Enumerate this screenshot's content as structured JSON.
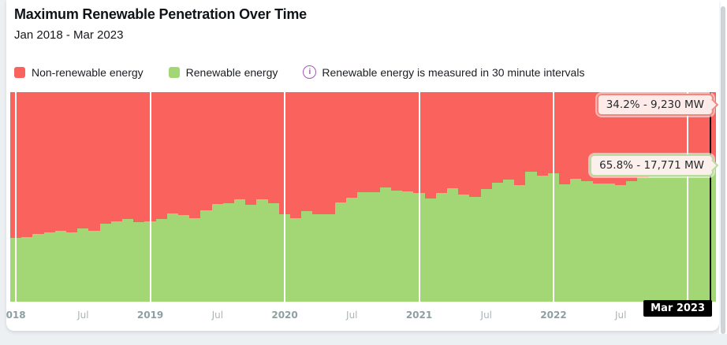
{
  "header": {
    "title": "Maximum Renewable Penetration Over Time",
    "subtitle": "Jan 2018 - Mar 2023"
  },
  "legend": {
    "items": [
      {
        "label": "Non-renewable energy",
        "color": "#fa625d"
      },
      {
        "label": "Renewable energy",
        "color": "#a3d675"
      }
    ],
    "note": {
      "icon": "info-icon",
      "icon_glyph": "i",
      "icon_color": "#a05ab0",
      "text": "Renewable energy is measured in 30 minute intervals"
    }
  },
  "tooltips": [
    {
      "series": "Non-renewable energy",
      "text": "34.2% - 9,230 MW",
      "border_color": "#f08a7e",
      "bg": "#fcebe8"
    },
    {
      "series": "Renewable energy",
      "text": "65.8% - 17,771 MW",
      "border_color": "#b8dd9e",
      "bg": "#fcf0ed"
    }
  ],
  "xaxis": {
    "ticks": [
      {
        "label": "018",
        "month": 0,
        "style": "year"
      },
      {
        "label": "Jul",
        "month": 6,
        "style": "minor"
      },
      {
        "label": "2019",
        "month": 12,
        "style": "year"
      },
      {
        "label": "Jul",
        "month": 18,
        "style": "minor"
      },
      {
        "label": "2020",
        "month": 24,
        "style": "year"
      },
      {
        "label": "Jul",
        "month": 30,
        "style": "minor"
      },
      {
        "label": "2021",
        "month": 36,
        "style": "year"
      },
      {
        "label": "Jul",
        "month": 42,
        "style": "minor"
      },
      {
        "label": "2022",
        "month": 48,
        "style": "year"
      },
      {
        "label": "Jul",
        "month": 54,
        "style": "minor"
      }
    ],
    "cursor": {
      "label": "Mar 2023",
      "month": 62
    }
  },
  "chart_data": {
    "type": "bar",
    "stacked": true,
    "normalized_to_100_percent": true,
    "x_start": "2018-01",
    "x_end": "2023-03",
    "months_count": 63,
    "gridline_months": [
      0,
      12,
      24,
      36,
      48,
      60
    ],
    "series": [
      {
        "name": "Non-renewable energy",
        "color": "#fa625d",
        "values_note": "complement: 100 minus renewable_pct"
      },
      {
        "name": "Renewable energy",
        "color": "#a3d675",
        "values_key": "renewable_pct"
      }
    ],
    "renewable_pct": [
      30.5,
      30.8,
      32.3,
      33.1,
      33.8,
      33.1,
      35.0,
      33.8,
      37.2,
      38.3,
      39.5,
      38.0,
      38.3,
      39.5,
      42.1,
      41.4,
      39.8,
      43.6,
      46.6,
      47.0,
      48.9,
      46.2,
      48.9,
      47.0,
      41.7,
      39.8,
      43.2,
      41.7,
      41.7,
      47.4,
      49.6,
      52.3,
      52.3,
      54.5,
      53.0,
      52.6,
      51.9,
      49.2,
      51.9,
      54.1,
      51.1,
      50.0,
      53.8,
      56.8,
      58.3,
      55.6,
      62.0,
      60.2,
      61.3,
      56.0,
      58.6,
      57.5,
      56.4,
      56.4,
      55.6,
      57.5,
      59.4,
      60.5,
      60.5,
      61.3,
      63.2,
      63.9,
      65.8
    ],
    "hover_readout": {
      "x": "Mar 2023",
      "non_renewable": "34.2% - 9,230 MW",
      "renewable": "65.8% - 17,771 MW"
    },
    "title": "Maximum Renewable Penetration Over Time",
    "xlabel": "",
    "ylabel": "",
    "ylim": [
      0,
      100
    ],
    "legend_position": "top-left",
    "grid": "vertical-year-lines"
  }
}
